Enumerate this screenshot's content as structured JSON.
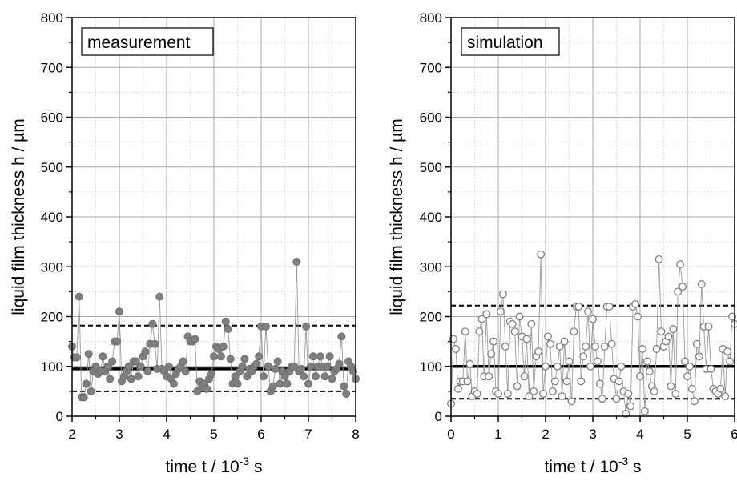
{
  "chart_data": [
    {
      "type": "scatter",
      "legend_label": "measurement",
      "legend_placement": "top-left",
      "xlabel": "time t / 10",
      "xlabel_exp": "-3",
      "xlabel_unit": " s",
      "ylabel": "liquid film thickness h / µm",
      "xlim": [
        2,
        8
      ],
      "ylim": [
        0,
        800
      ],
      "xticks": [
        2,
        3,
        4,
        5,
        6,
        7,
        8
      ],
      "yticks": [
        0,
        100,
        200,
        300,
        400,
        500,
        600,
        700,
        800
      ],
      "grid": true,
      "marker": "filled-circle",
      "marker_color": "#7f7f7f",
      "mean": 95,
      "band_upper": 182,
      "band_lower": 50,
      "x": [
        2.0,
        2.05,
        2.1,
        2.15,
        2.2,
        2.25,
        2.3,
        2.35,
        2.4,
        2.45,
        2.5,
        2.55,
        2.6,
        2.65,
        2.7,
        2.75,
        2.8,
        2.85,
        2.9,
        2.95,
        3.0,
        3.05,
        3.1,
        3.15,
        3.2,
        3.25,
        3.3,
        3.35,
        3.4,
        3.45,
        3.5,
        3.55,
        3.6,
        3.65,
        3.7,
        3.75,
        3.8,
        3.85,
        3.9,
        3.95,
        4.0,
        4.05,
        4.1,
        4.15,
        4.2,
        4.25,
        4.3,
        4.35,
        4.4,
        4.45,
        4.5,
        4.55,
        4.6,
        4.65,
        4.7,
        4.75,
        4.8,
        4.85,
        4.9,
        4.95,
        5.0,
        5.05,
        5.1,
        5.15,
        5.2,
        5.25,
        5.3,
        5.35,
        5.4,
        5.45,
        5.5,
        5.55,
        5.6,
        5.65,
        5.7,
        5.75,
        5.8,
        5.85,
        5.9,
        5.95,
        6.0,
        6.05,
        6.1,
        6.15,
        6.2,
        6.25,
        6.3,
        6.35,
        6.4,
        6.45,
        6.5,
        6.55,
        6.6,
        6.65,
        6.7,
        6.75,
        6.8,
        6.85,
        6.9,
        6.95,
        7.0,
        7.05,
        7.1,
        7.15,
        7.2,
        7.25,
        7.3,
        7.35,
        7.4,
        7.45,
        7.5,
        7.55,
        7.6,
        7.65,
        7.7,
        7.75,
        7.8,
        7.85,
        7.9,
        7.95,
        8.0
      ],
      "y": [
        140,
        118,
        118,
        240,
        38,
        38,
        65,
        125,
        50,
        90,
        100,
        85,
        90,
        120,
        90,
        100,
        75,
        110,
        150,
        150,
        210,
        70,
        80,
        90,
        100,
        75,
        110,
        110,
        80,
        100,
        120,
        130,
        90,
        145,
        185,
        145,
        95,
        240,
        95,
        90,
        80,
        100,
        75,
        65,
        85,
        95,
        100,
        110,
        90,
        160,
        150,
        150,
        155,
        50,
        70,
        60,
        65,
        55,
        75,
        85,
        120,
        140,
        135,
        120,
        140,
        190,
        175,
        115,
        65,
        80,
        65,
        90,
        100,
        115,
        80,
        95,
        90,
        100,
        105,
        120,
        180,
        80,
        180,
        100,
        50,
        60,
        95,
        110,
        65,
        90,
        80,
        65,
        90,
        100,
        100,
        310,
        90,
        95,
        80,
        180,
        65,
        100,
        120,
        80,
        100,
        120,
        100,
        80,
        100,
        120,
        75,
        90,
        95,
        105,
        160,
        60,
        45,
        110,
        100,
        90,
        75
      ]
    },
    {
      "type": "scatter",
      "legend_label": "simulation",
      "legend_placement": "top-left",
      "xlabel": "time t / 10",
      "xlabel_exp": "-3",
      "xlabel_unit": " s",
      "ylabel": "liquid film thickness h / µm",
      "xlim": [
        0,
        6
      ],
      "ylim": [
        0,
        800
      ],
      "xticks": [
        0,
        1,
        2,
        3,
        4,
        5,
        6
      ],
      "yticks": [
        0,
        100,
        200,
        300,
        400,
        500,
        600,
        700,
        800
      ],
      "grid": true,
      "marker": "open-circle",
      "marker_color": "#7f7f7f",
      "mean": 100,
      "band_upper": 222,
      "band_lower": 35,
      "x": [
        0.0,
        0.05,
        0.1,
        0.15,
        0.2,
        0.25,
        0.3,
        0.35,
        0.4,
        0.45,
        0.5,
        0.55,
        0.6,
        0.65,
        0.7,
        0.75,
        0.8,
        0.85,
        0.9,
        0.95,
        1.0,
        1.05,
        1.1,
        1.15,
        1.2,
        1.25,
        1.3,
        1.35,
        1.4,
        1.45,
        1.5,
        1.55,
        1.6,
        1.65,
        1.7,
        1.75,
        1.8,
        1.85,
        1.9,
        1.95,
        2.0,
        2.05,
        2.1,
        2.15,
        2.2,
        2.25,
        2.3,
        2.35,
        2.4,
        2.45,
        2.5,
        2.55,
        2.6,
        2.65,
        2.7,
        2.75,
        2.8,
        2.85,
        2.9,
        2.95,
        3.0,
        3.05,
        3.1,
        3.15,
        3.2,
        3.25,
        3.3,
        3.35,
        3.4,
        3.45,
        3.5,
        3.55,
        3.6,
        3.65,
        3.7,
        3.75,
        3.8,
        3.85,
        3.9,
        3.95,
        4.0,
        4.05,
        4.1,
        4.15,
        4.2,
        4.25,
        4.3,
        4.35,
        4.4,
        4.45,
        4.5,
        4.55,
        4.6,
        4.65,
        4.7,
        4.75,
        4.8,
        4.85,
        4.9,
        4.95,
        5.0,
        5.05,
        5.1,
        5.15,
        5.2,
        5.25,
        5.3,
        5.35,
        5.4,
        5.45,
        5.5,
        5.55,
        5.6,
        5.65,
        5.7,
        5.75,
        5.8,
        5.85,
        5.9,
        5.95,
        6.0
      ],
      "y": [
        25,
        155,
        135,
        55,
        70,
        70,
        170,
        70,
        105,
        40,
        50,
        45,
        170,
        195,
        80,
        205,
        80,
        125,
        150,
        50,
        45,
        210,
        245,
        140,
        45,
        190,
        185,
        170,
        60,
        200,
        160,
        80,
        155,
        40,
        185,
        50,
        120,
        130,
        325,
        45,
        100,
        160,
        145,
        50,
        70,
        100,
        140,
        40,
        150,
        70,
        110,
        30,
        170,
        220,
        220,
        70,
        120,
        140,
        210,
        100,
        195,
        140,
        110,
        65,
        35,
        140,
        220,
        220,
        145,
        75,
        35,
        70,
        100,
        50,
        5,
        45,
        20,
        220,
        225,
        200,
        80,
        135,
        10,
        110,
        90,
        60,
        50,
        135,
        315,
        170,
        140,
        150,
        160,
        60,
        175,
        45,
        250,
        305,
        260,
        110,
        80,
        100,
        55,
        30,
        145,
        120,
        265,
        180,
        95,
        180,
        95,
        55,
        50,
        45,
        55,
        135,
        40,
        130,
        110,
        200,
        185
      ]
    }
  ]
}
